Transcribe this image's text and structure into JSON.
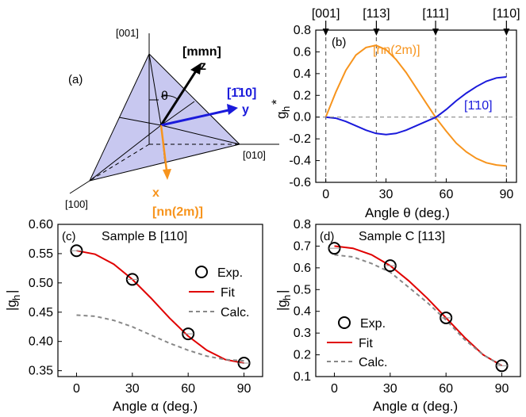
{
  "chart_data": [
    {
      "panel": "(a)",
      "type": "diagram",
      "labels": {
        "top_direction": "[001]",
        "right_direction": "[010]",
        "left_direction": "[100]",
        "z_label": "[mmn]",
        "z_axis": "z",
        "y_label": "[1̄10]",
        "y_axis": "y",
        "x_axis": "x",
        "x_label": "[nn(2m)]",
        "angle": "θ"
      },
      "colors": {
        "z": "#000000",
        "y": "#1a1adb",
        "x": "#f7941d",
        "face": "#c8c8f0"
      }
    },
    {
      "panel": "(b)",
      "type": "line",
      "ylabel_main": "g",
      "ylabel_sub": "h",
      "ylabel_sup": "*",
      "xlabel": "Angle θ (deg.)",
      "xlim": [
        -5,
        95
      ],
      "ylim": [
        -0.6,
        0.8
      ],
      "xticks": [
        0,
        30,
        60,
        90
      ],
      "yticks": [
        -0.6,
        -0.4,
        -0.2,
        0.0,
        0.2,
        0.4,
        0.6,
        0.8
      ],
      "top_markers": [
        {
          "label": "[001]",
          "x": 0
        },
        {
          "label": "[113]",
          "x": 25.2
        },
        {
          "label": "[111]",
          "x": 54.7
        },
        {
          "label": "[110]",
          "x": 90
        }
      ],
      "series": [
        {
          "name": "[nn(2m)]",
          "color": "#f7941d",
          "x": [
            0,
            5,
            10,
            15,
            20,
            25,
            30,
            35,
            40,
            45,
            50,
            55,
            60,
            65,
            70,
            75,
            80,
            85,
            90
          ],
          "values": [
            0.0,
            0.23,
            0.43,
            0.57,
            0.64,
            0.66,
            0.62,
            0.53,
            0.41,
            0.27,
            0.13,
            -0.01,
            -0.13,
            -0.24,
            -0.32,
            -0.38,
            -0.42,
            -0.44,
            -0.45
          ]
        },
        {
          "name": "[1̄10]",
          "color": "#1a1adb",
          "x": [
            0,
            5,
            10,
            15,
            20,
            25,
            30,
            35,
            40,
            45,
            50,
            55,
            60,
            65,
            70,
            75,
            80,
            85,
            90
          ],
          "values": [
            0.0,
            -0.01,
            -0.04,
            -0.08,
            -0.12,
            -0.15,
            -0.16,
            -0.15,
            -0.12,
            -0.08,
            -0.04,
            0.0,
            0.07,
            0.15,
            0.22,
            0.28,
            0.33,
            0.36,
            0.37
          ]
        },
        {
          "name": "zero",
          "color": "#888888",
          "dashed": true,
          "x": [
            -5,
            95
          ],
          "values": [
            0,
            0
          ]
        }
      ]
    },
    {
      "panel": "(c)",
      "title": "Sample B [110]",
      "type": "scatter+line",
      "ylabel": "|g",
      "ylabel_sub": "h",
      "ylabel_end": "|",
      "xlabel": "Angle α (deg.)",
      "xlim": [
        -10,
        100
      ],
      "ylim": [
        0.34,
        0.6
      ],
      "xticks": [
        0,
        30,
        60,
        90
      ],
      "yticks": [
        0.35,
        0.4,
        0.45,
        0.5,
        0.55,
        0.6
      ],
      "legend": [
        "Exp.",
        "Fit",
        "Calc."
      ],
      "legend_position": "right",
      "series": [
        {
          "name": "Exp.",
          "type": "scatter",
          "x": [
            0,
            30,
            60,
            90
          ],
          "values": [
            0.555,
            0.506,
            0.413,
            0.363
          ]
        },
        {
          "name": "Fit",
          "type": "line",
          "color": "#e00000",
          "x": [
            0,
            10,
            20,
            30,
            40,
            50,
            60,
            70,
            80,
            90
          ],
          "values": [
            0.555,
            0.549,
            0.532,
            0.506,
            0.474,
            0.44,
            0.409,
            0.385,
            0.369,
            0.363
          ]
        },
        {
          "name": "Calc.",
          "type": "line",
          "dashed": true,
          "color": "#888888",
          "x": [
            0,
            10,
            20,
            30,
            40,
            50,
            60,
            70,
            80,
            90
          ],
          "values": [
            0.445,
            0.443,
            0.436,
            0.425,
            0.411,
            0.397,
            0.385,
            0.375,
            0.369,
            0.367
          ]
        }
      ]
    },
    {
      "panel": "(d)",
      "title": "Sample C [113]",
      "type": "scatter+line",
      "ylabel": "|g",
      "ylabel_sub": "h",
      "ylabel_end": "|",
      "xlabel": "Angle α (deg.)",
      "xlim": [
        -10,
        100
      ],
      "ylim": [
        0.1,
        0.8
      ],
      "xticks": [
        0,
        30,
        60,
        90
      ],
      "yticks": [
        0.1,
        0.2,
        0.3,
        0.4,
        0.5,
        0.6,
        0.7,
        0.8
      ],
      "legend": [
        "Exp.",
        "Fit",
        "Calc."
      ],
      "legend_position": "left",
      "series": [
        {
          "name": "Exp.",
          "type": "scatter",
          "x": [
            0,
            30,
            60,
            90
          ],
          "values": [
            0.69,
            0.61,
            0.37,
            0.15
          ]
        },
        {
          "name": "Fit",
          "type": "line",
          "color": "#e00000",
          "x": [
            0,
            10,
            20,
            30,
            40,
            50,
            60,
            70,
            80,
            90
          ],
          "values": [
            0.7,
            0.69,
            0.66,
            0.61,
            0.54,
            0.46,
            0.37,
            0.28,
            0.2,
            0.15
          ]
        },
        {
          "name": "Calc.",
          "type": "line",
          "dashed": true,
          "color": "#888888",
          "x": [
            0,
            10,
            20,
            30,
            40,
            50,
            60,
            70,
            80,
            90
          ],
          "values": [
            0.66,
            0.65,
            0.62,
            0.58,
            0.51,
            0.44,
            0.36,
            0.27,
            0.2,
            0.15
          ]
        }
      ]
    }
  ]
}
